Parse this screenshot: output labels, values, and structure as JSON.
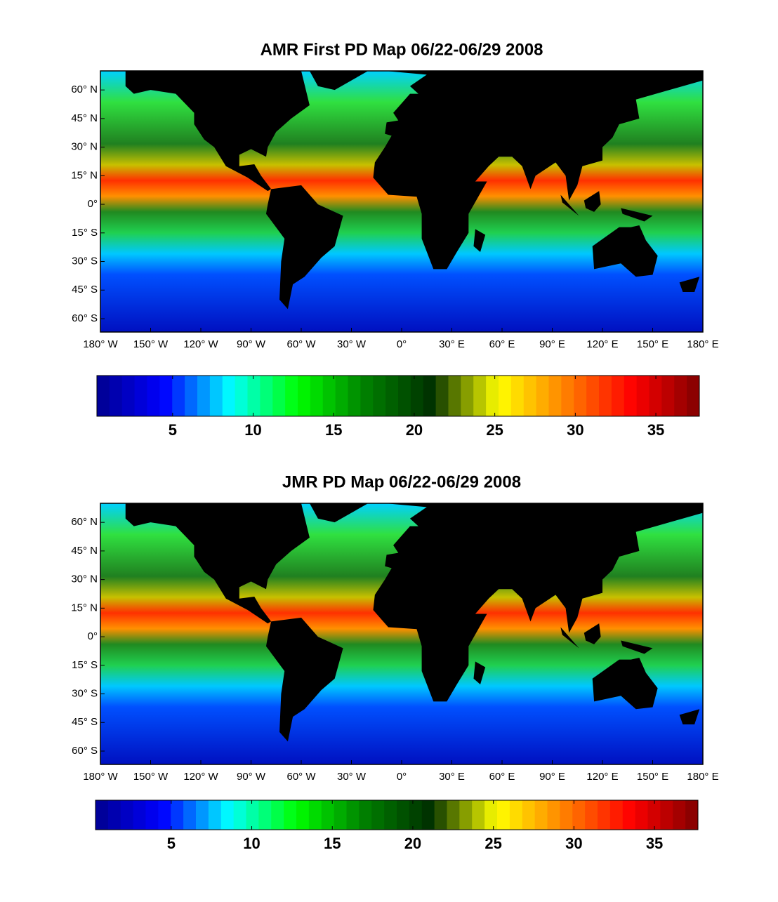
{
  "chart_data": [
    {
      "type": "map",
      "title": "AMR First PD Map 06/22-06/29 2008",
      "xlim": [
        -180,
        180
      ],
      "ylim": [
        -67,
        70
      ],
      "xticks": [
        {
          "value": -180,
          "label": "180° W"
        },
        {
          "value": -150,
          "label": "150° W"
        },
        {
          "value": -120,
          "label": "120° W"
        },
        {
          "value": -90,
          "label": "90° W"
        },
        {
          "value": -60,
          "label": "60° W"
        },
        {
          "value": -30,
          "label": "30° W"
        },
        {
          "value": 0,
          "label": "0°"
        },
        {
          "value": 30,
          "label": "30° E"
        },
        {
          "value": 60,
          "label": "60° E"
        },
        {
          "value": 90,
          "label": "90° E"
        },
        {
          "value": 120,
          "label": "120° E"
        },
        {
          "value": 150,
          "label": "150° E"
        },
        {
          "value": 180,
          "label": "180° E"
        }
      ],
      "yticks": [
        {
          "value": 60,
          "label": "60° N"
        },
        {
          "value": 45,
          "label": "45° N"
        },
        {
          "value": 30,
          "label": "30° N"
        },
        {
          "value": 15,
          "label": "15° N"
        },
        {
          "value": 0,
          "label": "0°"
        },
        {
          "value": -15,
          "label": "15° S"
        },
        {
          "value": -30,
          "label": "30° S"
        },
        {
          "value": -45,
          "label": "45° S"
        },
        {
          "value": -60,
          "label": "60° S"
        }
      ],
      "colorbar": {
        "clim": [
          0.3,
          37.7
        ],
        "ticks": [
          5,
          10,
          15,
          20,
          25,
          30,
          35
        ],
        "colors": [
          "#00008f",
          "#0000ff",
          "#00ffff",
          "#00ff00",
          "#008000",
          "#003000",
          "#ffff00",
          "#ff8000",
          "#ff0000",
          "#800000"
        ]
      }
    },
    {
      "type": "map",
      "title": "JMR PD Map 06/22-06/29 2008",
      "xlim": [
        -180,
        180
      ],
      "ylim": [
        -67,
        70
      ],
      "xticks": [
        {
          "value": -180,
          "label": "180° W"
        },
        {
          "value": -150,
          "label": "150° W"
        },
        {
          "value": -120,
          "label": "120° W"
        },
        {
          "value": -90,
          "label": "90° W"
        },
        {
          "value": -60,
          "label": "60° W"
        },
        {
          "value": -30,
          "label": "30° W"
        },
        {
          "value": 0,
          "label": "0°"
        },
        {
          "value": 30,
          "label": "30° E"
        },
        {
          "value": 60,
          "label": "60° E"
        },
        {
          "value": 90,
          "label": "90° E"
        },
        {
          "value": 120,
          "label": "120° E"
        },
        {
          "value": 150,
          "label": "150° E"
        },
        {
          "value": 180,
          "label": "180° E"
        }
      ],
      "yticks": [
        {
          "value": 60,
          "label": "60° N"
        },
        {
          "value": 45,
          "label": "45° N"
        },
        {
          "value": 30,
          "label": "30° N"
        },
        {
          "value": 15,
          "label": "15° N"
        },
        {
          "value": 0,
          "label": "0°"
        },
        {
          "value": -15,
          "label": "15° S"
        },
        {
          "value": -30,
          "label": "30° S"
        },
        {
          "value": -45,
          "label": "45° S"
        },
        {
          "value": -60,
          "label": "60° S"
        }
      ],
      "colorbar": {
        "clim": [
          0.3,
          37.7
        ],
        "ticks": [
          5,
          10,
          15,
          20,
          25,
          30,
          35
        ],
        "colors": [
          "#00008f",
          "#0000ff",
          "#00ffff",
          "#00ff00",
          "#008000",
          "#003000",
          "#ffff00",
          "#ff8000",
          "#ff0000",
          "#800000"
        ]
      }
    }
  ]
}
